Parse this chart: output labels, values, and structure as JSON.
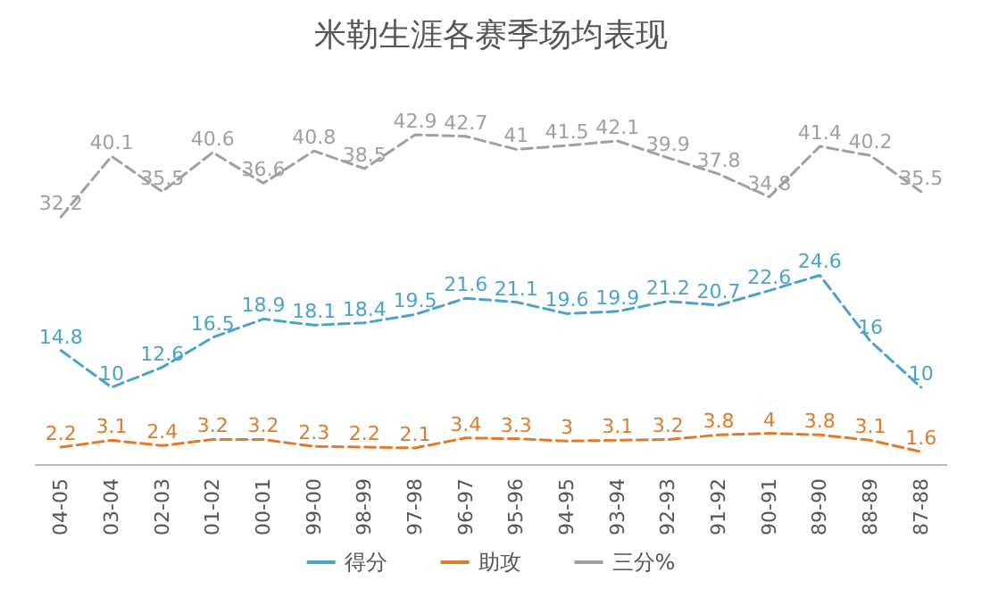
{
  "chart_data": {
    "type": "line",
    "title": "米勒生涯各赛季场均表现",
    "categories": [
      "04-05",
      "03-04",
      "02-03",
      "01-02",
      "00-01",
      "99-00",
      "98-99",
      "97-98",
      "96-97",
      "95-96",
      "94-95",
      "93-94",
      "92-93",
      "91-92",
      "90-91",
      "89-90",
      "88-89",
      "87-88"
    ],
    "series": [
      {
        "name": "得分",
        "color": "#4ba3c9",
        "values": [
          14.8,
          10,
          12.6,
          16.5,
          18.9,
          18.1,
          18.4,
          19.5,
          21.6,
          21.1,
          19.6,
          19.9,
          21.2,
          20.7,
          22.6,
          24.6,
          16,
          10
        ]
      },
      {
        "name": "助攻",
        "color": "#e07b2b",
        "values": [
          2.2,
          3.1,
          2.4,
          3.2,
          3.2,
          2.3,
          2.2,
          2.1,
          3.4,
          3.3,
          3,
          3.1,
          3.2,
          3.8,
          4,
          3.8,
          3.1,
          1.6
        ]
      },
      {
        "name": "三分%",
        "color": "#a0a0a0",
        "values": [
          32.2,
          40.1,
          35.5,
          40.6,
          36.6,
          40.8,
          38.5,
          42.9,
          42.7,
          41,
          41.5,
          42.1,
          39.9,
          37.8,
          34.8,
          41.4,
          40.2,
          35.5
        ]
      }
    ],
    "data_labels": true,
    "legend": "bottom",
    "grid": false,
    "marker": "none",
    "line_style": "dashed"
  }
}
